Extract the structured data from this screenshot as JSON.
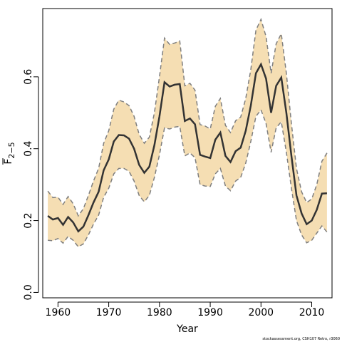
{
  "chart_data": {
    "type": "line",
    "xlabel": "Year",
    "ylabel": "F",
    "ylabel_sub": "2−5",
    "xlim": [
      1957,
      2014
    ],
    "ylim": [
      -0.015,
      0.79
    ],
    "x_ticks": [
      1960,
      1970,
      1980,
      1990,
      2000,
      2010
    ],
    "x_tick_labels": [
      "1960",
      "1970",
      "1980",
      "1990",
      "2000",
      "2010"
    ],
    "y_ticks": [
      0.0,
      0.2,
      0.4,
      0.6
    ],
    "y_tick_labels": [
      "0.0",
      "0.2",
      "0.4",
      "0.6"
    ],
    "grid": false,
    "x": [
      1958,
      1959,
      1960,
      1961,
      1962,
      1963,
      1964,
      1965,
      1966,
      1967,
      1968,
      1969,
      1970,
      1971,
      1972,
      1973,
      1974,
      1975,
      1976,
      1977,
      1978,
      1979,
      1980,
      1981,
      1982,
      1983,
      1984,
      1985,
      1986,
      1987,
      1988,
      1989,
      1990,
      1991,
      1992,
      1993,
      1994,
      1995,
      1996,
      1997,
      1998,
      1999,
      2000,
      2001,
      2002,
      2003,
      2004,
      2005,
      2006,
      2007,
      2008,
      2009,
      2010,
      2011,
      2012,
      2013
    ],
    "series": [
      {
        "values": [
          0.213,
          0.203,
          0.207,
          0.188,
          0.21,
          0.195,
          0.17,
          0.183,
          0.215,
          0.25,
          0.28,
          0.34,
          0.37,
          0.42,
          0.438,
          0.437,
          0.428,
          0.4,
          0.355,
          0.333,
          0.35,
          0.41,
          0.49,
          0.585,
          0.573,
          0.578,
          0.58,
          0.477,
          0.484,
          0.468,
          0.383,
          0.378,
          0.374,
          0.425,
          0.445,
          0.38,
          0.363,
          0.393,
          0.403,
          0.45,
          0.52,
          0.61,
          0.635,
          0.595,
          0.5,
          0.575,
          0.598,
          0.5,
          0.38,
          0.27,
          0.22,
          0.19,
          0.2,
          0.23,
          0.275,
          0.276
        ]
      },
      {
        "values": [
          0.145,
          0.144,
          0.15,
          0.137,
          0.156,
          0.145,
          0.127,
          0.135,
          0.16,
          0.19,
          0.215,
          0.265,
          0.29,
          0.33,
          0.345,
          0.345,
          0.337,
          0.31,
          0.27,
          0.252,
          0.27,
          0.32,
          0.383,
          0.458,
          0.455,
          0.46,
          0.462,
          0.38,
          0.388,
          0.375,
          0.3,
          0.296,
          0.295,
          0.33,
          0.345,
          0.296,
          0.283,
          0.31,
          0.32,
          0.36,
          0.42,
          0.49,
          0.508,
          0.47,
          0.39,
          0.458,
          0.475,
          0.39,
          0.29,
          0.2,
          0.16,
          0.138,
          0.145,
          0.165,
          0.185,
          0.168
        ]
      },
      {
        "values": [
          0.282,
          0.264,
          0.265,
          0.245,
          0.267,
          0.247,
          0.213,
          0.233,
          0.27,
          0.31,
          0.345,
          0.415,
          0.45,
          0.51,
          0.535,
          0.53,
          0.52,
          0.49,
          0.44,
          0.415,
          0.432,
          0.5,
          0.6,
          0.708,
          0.69,
          0.694,
          0.7,
          0.575,
          0.582,
          0.563,
          0.467,
          0.463,
          0.455,
          0.518,
          0.54,
          0.465,
          0.445,
          0.478,
          0.488,
          0.54,
          0.62,
          0.73,
          0.76,
          0.712,
          0.61,
          0.692,
          0.72,
          0.61,
          0.47,
          0.345,
          0.28,
          0.25,
          0.26,
          0.3,
          0.365,
          0.388
        ]
      }
    ]
  },
  "footer": "stockassessment.org, CSH107 Retro, r3060",
  "colors": {
    "band_fill": "#F5DEB3",
    "band_edge": "#7F7F7F",
    "line": "#333333",
    "axis": "#000000"
  }
}
